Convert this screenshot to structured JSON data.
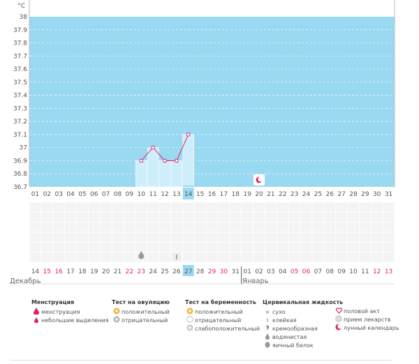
{
  "chart_data": {
    "type": "bar",
    "unit": "°C",
    "ylim": [
      36.7,
      38.0
    ],
    "y_ticks": [
      "38",
      "37.9",
      "37.8",
      "37.7",
      "37.6",
      "37.5",
      "37.4",
      "37.3",
      "37.2",
      "37.1",
      "37",
      "36.9",
      "36.8",
      "36.7"
    ],
    "cycle_days": [
      "01",
      "02",
      "03",
      "04",
      "05",
      "06",
      "07",
      "08",
      "09",
      "10",
      "11",
      "12",
      "13",
      "14",
      "15",
      "16",
      "17",
      "18",
      "19",
      "20",
      "21",
      "22",
      "23",
      "24",
      "25",
      "26",
      "27",
      "28",
      "29",
      "30",
      "31"
    ],
    "highlight_day_index": 13,
    "temperatures": [
      {
        "day": "10",
        "value": 36.9
      },
      {
        "day": "11",
        "value": 37.0
      },
      {
        "day": "12",
        "value": 36.9
      },
      {
        "day": "13",
        "value": 36.9
      },
      {
        "day": "14",
        "value": 37.1
      }
    ]
  },
  "dates": {
    "labels": [
      "14",
      "15",
      "16",
      "17",
      "18",
      "19",
      "20",
      "21",
      "22",
      "23",
      "24",
      "25",
      "26",
      "27",
      "28",
      "29",
      "30",
      "31",
      "01",
      "02",
      "03",
      "04",
      "05",
      "06",
      "07",
      "08",
      "09",
      "10",
      "11",
      "12",
      "13"
    ],
    "red": [
      false,
      true,
      true,
      false,
      false,
      false,
      false,
      false,
      true,
      true,
      false,
      false,
      false,
      false,
      false,
      true,
      true,
      false,
      false,
      false,
      false,
      false,
      true,
      true,
      false,
      false,
      false,
      false,
      false,
      true,
      true
    ]
  },
  "months": {
    "december": "Декабрь",
    "january": "Январь"
  },
  "day_markers": {
    "drop_day_index": 9,
    "sticky_day_index": 12,
    "moon_day_index": 19
  },
  "colors": {
    "plot_bg": "#9ad9f2",
    "bar_fill": "#cfeefc",
    "line": "#e0245e",
    "highlight": "#9ad9f2",
    "red": "#e0245e"
  },
  "legend": {
    "menstruation": {
      "title": "Менструация",
      "items": [
        "менструация",
        "небольшие выделения"
      ],
      "icons": [
        "drop-red",
        "drop-small-red"
      ]
    },
    "ovulation": {
      "title": "Тест на овуляцию",
      "items": [
        "положительный",
        "отрицательный"
      ],
      "icons": [
        "circle-orange",
        "circle-grey"
      ]
    },
    "pregnancy": {
      "title": "Тест на беременность",
      "items": [
        "положительный",
        "отрицательный",
        "слабоположительный"
      ],
      "icons": [
        "circle-orange",
        "circle-white",
        "circle-grey"
      ]
    },
    "cervical": {
      "title": "Цервикальная жидкость",
      "items": [
        "сухо",
        "клейкая",
        "кремообразная",
        "водянистая",
        "яичный белок"
      ],
      "icons": [
        "cross",
        "t-mark",
        "swirl",
        "drop-grey",
        "egg-grey"
      ]
    },
    "other": {
      "items": [
        "половой акт",
        "прием лекарств",
        "лунный календарь"
      ],
      "icons": [
        "heart",
        "pill",
        "moon"
      ]
    }
  }
}
